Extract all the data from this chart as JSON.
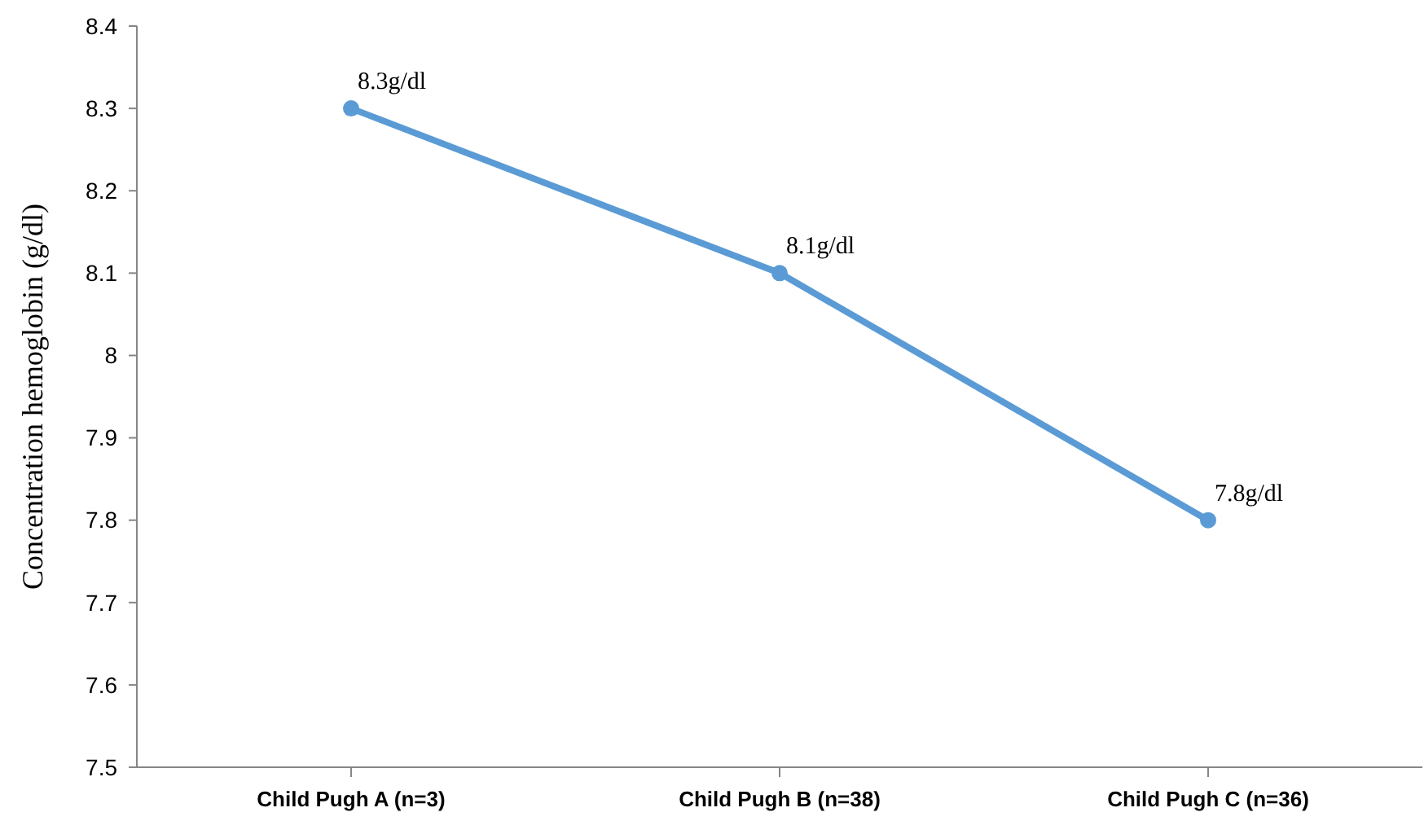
{
  "chart_data": {
    "type": "line",
    "ylabel": "Concentration  hemoglobin  (g/dl)",
    "categories": [
      "Child Pugh A (n=3)",
      "Child Pugh B (n=38)",
      "Child Pugh C (n=36)"
    ],
    "series": [
      {
        "color": "#5b9bd5",
        "values": [
          8.3,
          8.1,
          7.8
        ],
        "value_labels": [
          "8.3g/dl",
          "8.1g/dl",
          "7.8g/dl"
        ]
      }
    ],
    "ylim": [
      7.5,
      8.4
    ],
    "yticks": [
      7.5,
      7.6,
      7.7,
      7.8,
      7.9,
      8,
      8.1,
      8.2,
      8.3,
      8.4
    ],
    "marker": "circle",
    "line_style": "solid",
    "grid": false
  }
}
